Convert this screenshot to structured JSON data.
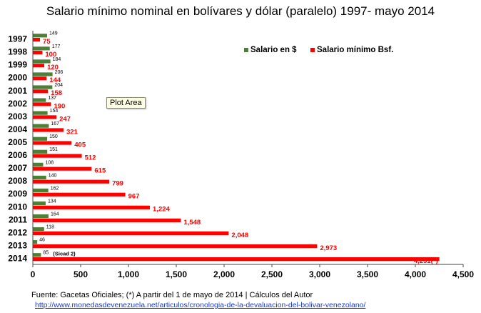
{
  "chart_data": {
    "type": "bar",
    "orientation": "horizontal",
    "title": "Salario mínimo nominal en bolívares y dólar (paralelo) 1997- mayo 2014",
    "categories": [
      "1997",
      "1998",
      "1999",
      "2000",
      "2001",
      "2002",
      "2003",
      "2004",
      "2005",
      "2006",
      "2007",
      "2008",
      "2009",
      "2010",
      "2011",
      "2012",
      "2013",
      "2014"
    ],
    "series": [
      {
        "name": "Salario en $",
        "color": "#4e7f36",
        "values": [
          149,
          177,
          184,
          206,
          204,
          137,
          154,
          167,
          150,
          151,
          108,
          140,
          162,
          134,
          164,
          118,
          46,
          85
        ],
        "labels": [
          "149",
          "177",
          "184",
          "206",
          "204",
          "137",
          "154",
          "167",
          "150",
          "151",
          "108",
          "140",
          "162",
          "134",
          "164",
          "118",
          "46",
          "85"
        ]
      },
      {
        "name": "Salario mínimo Bsf.",
        "color": "#ff0000",
        "values": [
          75,
          100,
          120,
          144,
          158,
          190,
          247,
          321,
          405,
          512,
          615,
          799,
          967,
          1224,
          1548,
          2048,
          2973,
          4251
        ],
        "labels": [
          "75",
          "100",
          "120",
          "144",
          "158",
          "190",
          "247",
          "321",
          "405",
          "512",
          "615",
          "799",
          "967",
          "1,224",
          "1,548",
          "2,048",
          "2,973",
          "4,251(*)"
        ]
      }
    ],
    "annotations": [
      "(Sicad 2)"
    ],
    "xlim": [
      0,
      4500
    ],
    "xticks": [
      0,
      500,
      1000,
      1500,
      2000,
      2500,
      3000,
      3500,
      4000,
      4500
    ],
    "xtick_labels": [
      "0",
      "500",
      "1,000",
      "1,500",
      "2,000",
      "2,500",
      "3,000",
      "3,500",
      "4,000",
      "4,500"
    ],
    "grid": false,
    "legend_placement": "top-right"
  },
  "tooltip": "Plot Area",
  "footer": {
    "source": "Fuente: Gacetas Oficiales; (*) A partir del 1 de mayo de 2014  | Cálculos del Autor",
    "link": "http://www.monedasdevenezuela.net/articulos/cronologia-de-la-devaluacion-del-bolivar-venezolano/"
  }
}
